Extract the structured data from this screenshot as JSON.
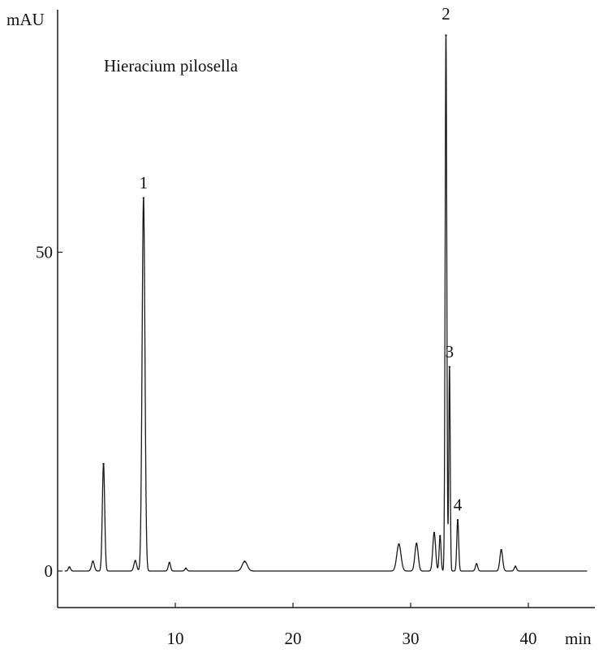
{
  "chart_data": {
    "type": "line",
    "title": "Hieracium pilosella",
    "ylabel": "mAU",
    "xlabel": "min",
    "xlim": [
      0,
      45
    ],
    "ylim": [
      -6,
      88
    ],
    "x_ticks": [
      10,
      20,
      30,
      40
    ],
    "y_ticks": [
      0,
      50
    ],
    "grid": false,
    "line_color": "#1a1a1a",
    "peaks": [
      {
        "x": 1.0,
        "height": 0.6,
        "width": 0.1
      },
      {
        "x": 3.0,
        "height": 1.5,
        "width": 0.12
      },
      {
        "x": 3.9,
        "height": 16.8,
        "width": 0.1
      },
      {
        "x": 6.6,
        "height": 1.6,
        "width": 0.12
      },
      {
        "x": 7.3,
        "height": 58.5,
        "width": 0.12
      },
      {
        "x": 9.5,
        "height": 1.3,
        "width": 0.1
      },
      {
        "x": 10.9,
        "height": 0.4,
        "width": 0.1
      },
      {
        "x": 15.9,
        "height": 1.5,
        "width": 0.22
      },
      {
        "x": 29.0,
        "height": 4.2,
        "width": 0.18
      },
      {
        "x": 30.5,
        "height": 4.3,
        "width": 0.14
      },
      {
        "x": 32.0,
        "height": 6.0,
        "width": 0.12
      },
      {
        "x": 32.5,
        "height": 5.5,
        "width": 0.08
      },
      {
        "x": 33.0,
        "height": 84.0,
        "width": 0.07
      },
      {
        "x": 33.3,
        "height": 32.0,
        "width": 0.06
      },
      {
        "x": 34.0,
        "height": 8.0,
        "width": 0.08
      },
      {
        "x": 35.6,
        "height": 1.1,
        "width": 0.1
      },
      {
        "x": 37.7,
        "height": 3.3,
        "width": 0.12
      },
      {
        "x": 38.9,
        "height": 0.7,
        "width": 0.1
      }
    ],
    "annotations": [
      {
        "label": "1",
        "x": 7.3,
        "y": 59.5
      },
      {
        "label": "2",
        "x": 33.0,
        "y": 86.0
      },
      {
        "label": "3",
        "x": 33.3,
        "y": 33.0
      },
      {
        "label": "4",
        "x": 34.0,
        "y": 9.0
      }
    ]
  }
}
